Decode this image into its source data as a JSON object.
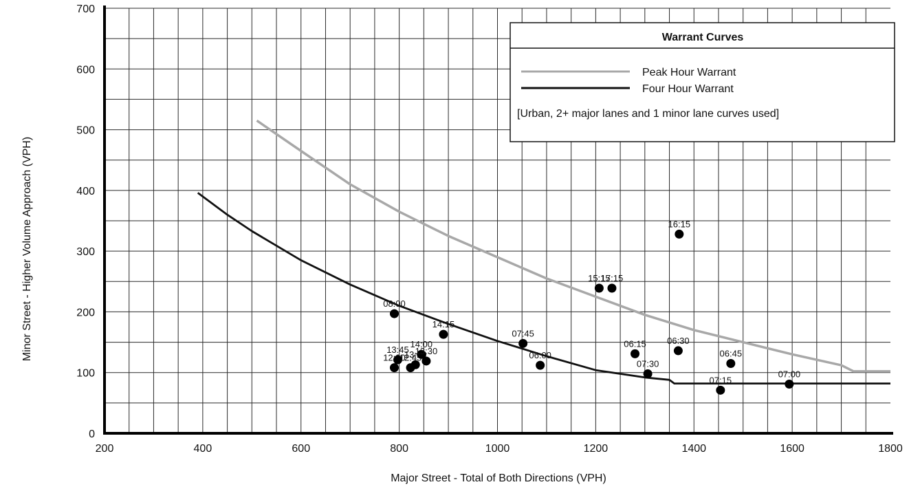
{
  "chart_data": {
    "type": "scatter",
    "xlabel": "Major Street - Total of Both Directions (VPH)",
    "ylabel": "Minor Street - Higher Volume Approach (VPH)",
    "xlim": [
      200,
      1800
    ],
    "ylim": [
      0,
      700
    ],
    "xticks": [
      200,
      400,
      600,
      800,
      1000,
      1200,
      1400,
      1600,
      1800
    ],
    "yticks": [
      0,
      100,
      200,
      300,
      400,
      500,
      600,
      700
    ],
    "grid": true,
    "legend": {
      "title": "Warrant Curves",
      "entries": [
        "Peak Hour Warrant",
        "Four Hour Warrant"
      ],
      "note": "[Urban,  2+ major lanes and 1 minor lane curves used]",
      "placement": "top-right"
    },
    "series": [
      {
        "name": "Peak Hour Warrant",
        "type": "line",
        "color": "#a8a8a8",
        "x": [
          510,
          600,
          700,
          800,
          900,
          1000,
          1100,
          1200,
          1300,
          1400,
          1500,
          1600,
          1700,
          1725,
          1800
        ],
        "y": [
          515,
          465,
          410,
          365,
          325,
          290,
          255,
          225,
          195,
          170,
          150,
          130,
          112,
          102,
          102
        ]
      },
      {
        "name": "Four Hour Warrant",
        "type": "line",
        "color": "#111111",
        "x": [
          390,
          450,
          500,
          600,
          700,
          800,
          900,
          1000,
          1100,
          1200,
          1300,
          1350,
          1360,
          1800
        ],
        "y": [
          396,
          360,
          333,
          285,
          245,
          210,
          180,
          152,
          127,
          104,
          92,
          88,
          82,
          82
        ]
      }
    ],
    "points": [
      {
        "label": "08:00",
        "x": 790,
        "y": 197
      },
      {
        "label": "12:30",
        "x": 790,
        "y": 108
      },
      {
        "label": "13:45",
        "x": 797,
        "y": 121
      },
      {
        "label": "12:45",
        "x": 823,
        "y": 108
      },
      {
        "label": "13:00",
        "x": 833,
        "y": 113
      },
      {
        "label": "14:00",
        "x": 845,
        "y": 130
      },
      {
        "label": "13:30",
        "x": 855,
        "y": 119
      },
      {
        "label": "14:15",
        "x": 890,
        "y": 163
      },
      {
        "label": "07:45",
        "x": 1052,
        "y": 148
      },
      {
        "label": "06:00",
        "x": 1087,
        "y": 112
      },
      {
        "label": "15:15",
        "x": 1207,
        "y": 239
      },
      {
        "label": "17:15",
        "x": 1233,
        "y": 239
      },
      {
        "label": "06:15",
        "x": 1280,
        "y": 131
      },
      {
        "label": "07:30",
        "x": 1306,
        "y": 98
      },
      {
        "label": "06:30",
        "x": 1368,
        "y": 136
      },
      {
        "label": "16:15",
        "x": 1370,
        "y": 328
      },
      {
        "label": "07:15",
        "x": 1454,
        "y": 71
      },
      {
        "label": "06:45",
        "x": 1475,
        "y": 115
      },
      {
        "label": "07:00",
        "x": 1594,
        "y": 81
      }
    ]
  }
}
